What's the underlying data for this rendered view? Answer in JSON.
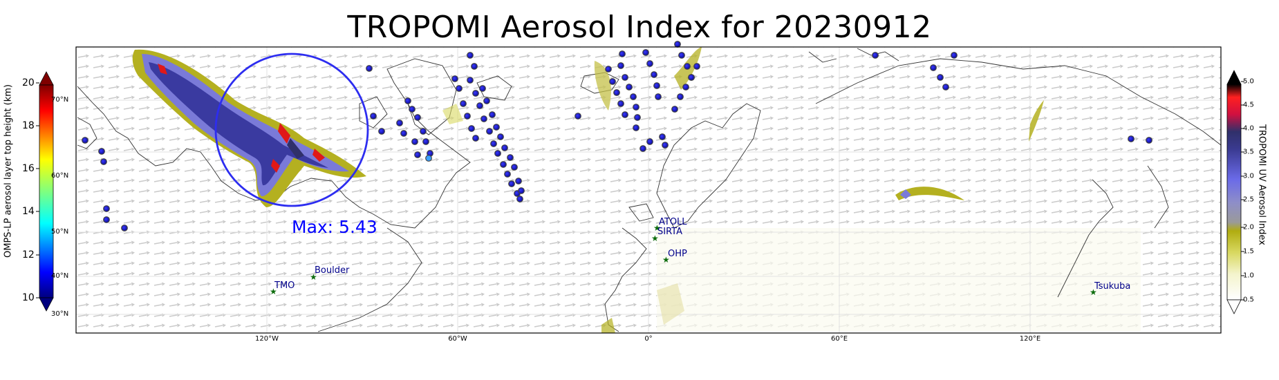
{
  "title": "TROPOMI Aerosol Index for 20230912",
  "max_label": "Max: 5.43",
  "lon_labels": [
    "120°W",
    "60°W",
    "0°",
    "60°E",
    "120°E"
  ],
  "lat_labels": [
    "70°N",
    "60°N",
    "50°N",
    "40°N",
    "30°N"
  ],
  "left_colorbar": {
    "title": "OMPS-LP aerosol layer top height (km)",
    "ticks": [
      "20",
      "18",
      "16",
      "14",
      "12",
      "10"
    ],
    "range_km": [
      10,
      20
    ],
    "colormap": "jet"
  },
  "right_colorbar": {
    "title": "TROPOMI UV Aerosol Index",
    "ticks": [
      "5.0",
      "4.5",
      "4.0",
      "3.5",
      "3.0",
      "2.5",
      "2.0",
      "1.5",
      "1.0",
      "0.5"
    ],
    "range": [
      0.5,
      5.0
    ]
  },
  "sites": [
    {
      "name": "Boulder"
    },
    {
      "name": "TMO"
    },
    {
      "name": "ATOLL"
    },
    {
      "name": "SIRTA"
    },
    {
      "name": "OHP"
    },
    {
      "name": "Tsukuba"
    }
  ],
  "colors": {
    "circle": "#2d2df0",
    "site_marker": "#0b6b0b",
    "site_label": "#00008b",
    "max_label": "#0000ff"
  }
}
